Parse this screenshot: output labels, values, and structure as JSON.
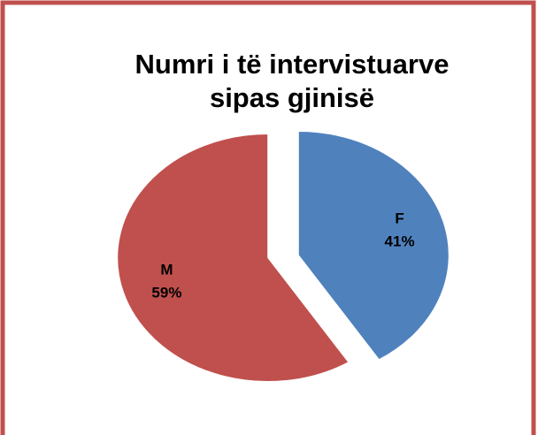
{
  "chart_data": {
    "type": "pie",
    "title": [
      "Numri i të intervistuarve",
      "sipas gjinisë"
    ],
    "categories": [
      "F",
      "M"
    ],
    "values": [
      41,
      59
    ],
    "value_labels": [
      "41%",
      "59%"
    ],
    "colors": [
      "#4f81bd",
      "#c0504d"
    ],
    "exploded": true
  }
}
